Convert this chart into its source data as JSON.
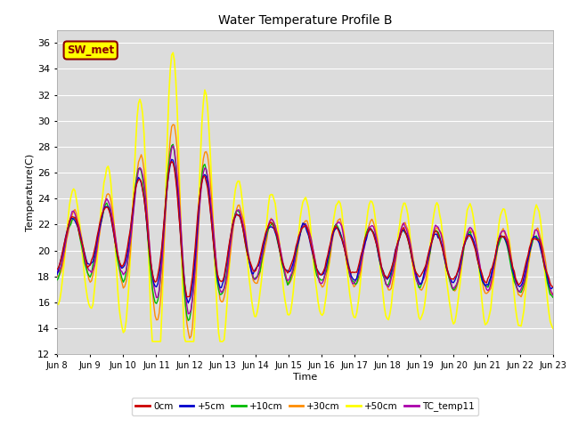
{
  "title": "Water Temperature Profile B",
  "xlabel": "Time",
  "ylabel": "Temperature(C)",
  "ylim": [
    12,
    37
  ],
  "yticks": [
    12,
    14,
    16,
    18,
    20,
    22,
    24,
    26,
    28,
    30,
    32,
    34,
    36
  ],
  "xtick_labels": [
    "Jun 8",
    "Jun 9",
    "Jun 10",
    "Jun 11",
    "Jun 12",
    "Jun 13",
    "Jun 14",
    "Jun 15",
    "Jun 16",
    "Jun 17",
    "Jun 18",
    "Jun 19",
    "Jun 20",
    "Jun 21",
    "Jun 22",
    "Jun 23"
  ],
  "annotation_text": "SW_met",
  "annotation_bg": "#FFFF00",
  "annotation_edge": "#8B0000",
  "bg_color": "#DCDCDC",
  "colors": {
    "0cm": "#CC0000",
    "+5cm": "#0000CC",
    "+10cm": "#00BB00",
    "+30cm": "#FF8C00",
    "+50cm": "#FFFF00",
    "TC_temp11": "#AA00AA"
  },
  "line_widths": {
    "0cm": 1.0,
    "+5cm": 1.0,
    "+10cm": 1.0,
    "+30cm": 1.0,
    "+50cm": 1.2,
    "TC_temp11": 1.0
  },
  "figsize": [
    6.4,
    4.8
  ],
  "dpi": 100
}
